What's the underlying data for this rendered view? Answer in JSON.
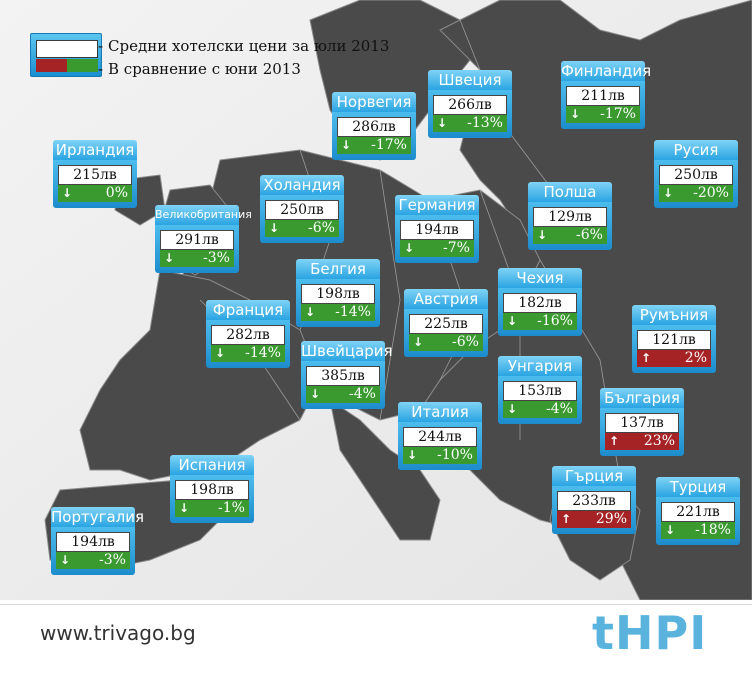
{
  "legend": {
    "line1": "Средни хотелски цени за юли 2013",
    "line2": "В сравнение с юни 2013",
    "colors": {
      "up": "#a52325",
      "down": "#3b9a2e",
      "frame": "#1d8ccc"
    }
  },
  "countries": [
    {
      "name": "Ирландия",
      "price": "215лв",
      "direction": "down",
      "change": "0%"
    },
    {
      "name": "Великобритания",
      "price": "291лв",
      "direction": "down",
      "change": "-3%"
    },
    {
      "name": "Холандия",
      "price": "250лв",
      "direction": "down",
      "change": "-6%"
    },
    {
      "name": "Норвегия",
      "price": "286лв",
      "direction": "down",
      "change": "-17%"
    },
    {
      "name": "Швеция",
      "price": "266лв",
      "direction": "down",
      "change": "-13%"
    },
    {
      "name": "Финландия",
      "price": "211лв",
      "direction": "down",
      "change": "-17%"
    },
    {
      "name": "Русия",
      "price": "250лв",
      "direction": "down",
      "change": "-20%"
    },
    {
      "name": "Германия",
      "price": "194лв",
      "direction": "down",
      "change": "-7%"
    },
    {
      "name": "Полша",
      "price": "129лв",
      "direction": "down",
      "change": "-6%"
    },
    {
      "name": "Белгия",
      "price": "198лв",
      "direction": "down",
      "change": "-14%"
    },
    {
      "name": "Чехия",
      "price": "182лв",
      "direction": "down",
      "change": "-16%"
    },
    {
      "name": "Франция",
      "price": "282лв",
      "direction": "down",
      "change": "-14%"
    },
    {
      "name": "Австрия",
      "price": "225лв",
      "direction": "down",
      "change": "-6%"
    },
    {
      "name": "Румъния",
      "price": "121лв",
      "direction": "up",
      "change": "2%"
    },
    {
      "name": "Швейцария",
      "price": "385лв",
      "direction": "down",
      "change": "-4%"
    },
    {
      "name": "Унгария",
      "price": "153лв",
      "direction": "down",
      "change": "-4%"
    },
    {
      "name": "България",
      "price": "137лв",
      "direction": "up",
      "change": "23%"
    },
    {
      "name": "Италия",
      "price": "244лв",
      "direction": "down",
      "change": "-10%"
    },
    {
      "name": "Испания",
      "price": "198лв",
      "direction": "down",
      "change": "-1%"
    },
    {
      "name": "Гърция",
      "price": "233лв",
      "direction": "up",
      "change": "29%"
    },
    {
      "name": "Турция",
      "price": "221лв",
      "direction": "down",
      "change": "-18%"
    },
    {
      "name": "Португалия",
      "price": "194лв",
      "direction": "down",
      "change": "-3%"
    }
  ],
  "footer": {
    "site": "www.trivago.bg",
    "logo": "tHPI"
  }
}
